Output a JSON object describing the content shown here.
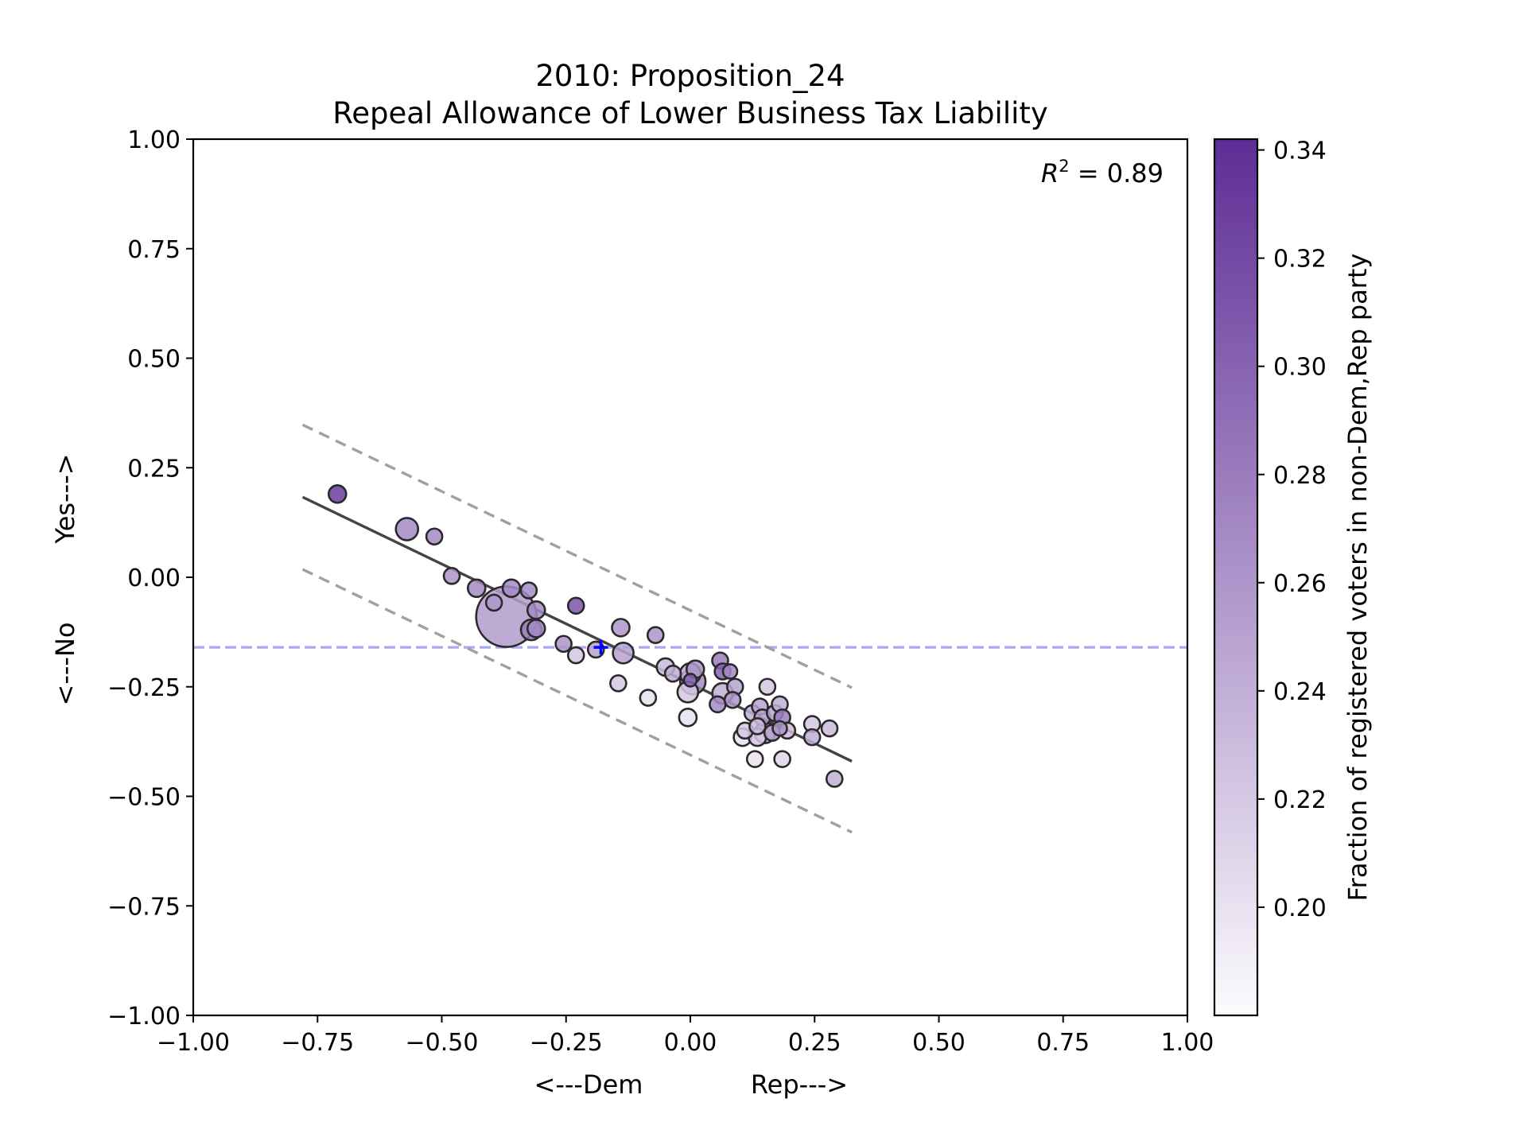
{
  "chart_data": {
    "type": "scatter",
    "title": "2010: Proposition_24",
    "subtitle": "Repeal Allowance of Lower Business Tax Liability",
    "xlabel_left": "<---Dem",
    "xlabel_right": "Rep--->",
    "ylabel_bottom": "<---No",
    "ylabel_top": "Yes--->",
    "xlim": [
      -1.0,
      1.0
    ],
    "ylim": [
      -1.0,
      1.0
    ],
    "xticks": [
      -1.0,
      -0.75,
      -0.5,
      -0.25,
      0.0,
      0.25,
      0.5,
      0.75,
      1.0
    ],
    "yticks": [
      -1.0,
      -0.75,
      -0.5,
      -0.25,
      0.0,
      0.25,
      0.5,
      0.75,
      1.0
    ],
    "xtick_labels": [
      "−1.00",
      "−0.75",
      "−0.50",
      "−0.25",
      "0.00",
      "0.25",
      "0.50",
      "0.75",
      "1.00"
    ],
    "ytick_labels": [
      "−1.00",
      "−0.75",
      "−0.50",
      "−0.25",
      "0.00",
      "0.25",
      "0.50",
      "0.75",
      "1.00"
    ],
    "annotation": {
      "label": "R",
      "superscript": "2",
      "value": " = 0.89"
    },
    "statewide_marker": {
      "x": -0.18,
      "y": -0.16,
      "color": "#0000ff"
    },
    "reference_hline": {
      "y": -0.16,
      "color": "#aaaaee"
    },
    "fit_line": {
      "x": [
        -0.78,
        0.325
      ],
      "y": [
        0.183,
        -0.42
      ],
      "color": "#444444"
    },
    "band_upper": {
      "x": [
        -0.78,
        0.325
      ],
      "y": [
        0.348,
        -0.252
      ],
      "color": "#a0a0a0"
    },
    "band_lower": {
      "x": [
        -0.78,
        0.325
      ],
      "y": [
        0.018,
        -0.582
      ],
      "color": "#a0a0a0"
    },
    "colorbar": {
      "label": "Fraction of registered voters in non-Dem,Rep party",
      "range": [
        0.18,
        0.342
      ],
      "ticks": [
        0.2,
        0.22,
        0.24,
        0.26,
        0.28,
        0.3,
        0.32,
        0.34
      ],
      "tick_labels": [
        "0.20",
        "0.22",
        "0.24",
        "0.26",
        "0.28",
        "0.30",
        "0.32",
        "0.34"
      ],
      "color_low": "#fcfbfd",
      "color_high": "#5e2d96"
    },
    "points": [
      {
        "x": -0.71,
        "y": 0.19,
        "size": 11,
        "c": 0.33
      },
      {
        "x": -0.57,
        "y": 0.11,
        "size": 14,
        "c": 0.27
      },
      {
        "x": -0.515,
        "y": 0.093,
        "size": 10,
        "c": 0.27
      },
      {
        "x": -0.48,
        "y": 0.003,
        "size": 10,
        "c": 0.26
      },
      {
        "x": -0.43,
        "y": -0.025,
        "size": 11,
        "c": 0.27
      },
      {
        "x": -0.395,
        "y": -0.058,
        "size": 10,
        "c": 0.26
      },
      {
        "x": -0.37,
        "y": -0.09,
        "size": 38,
        "c": 0.255
      },
      {
        "x": -0.36,
        "y": -0.025,
        "size": 11,
        "c": 0.27
      },
      {
        "x": -0.325,
        "y": -0.03,
        "size": 10,
        "c": 0.27
      },
      {
        "x": -0.31,
        "y": -0.075,
        "size": 11,
        "c": 0.27
      },
      {
        "x": -0.32,
        "y": -0.12,
        "size": 13,
        "c": 0.28
      },
      {
        "x": -0.31,
        "y": -0.117,
        "size": 11,
        "c": 0.27
      },
      {
        "x": -0.23,
        "y": -0.065,
        "size": 10,
        "c": 0.31
      },
      {
        "x": -0.255,
        "y": -0.152,
        "size": 10,
        "c": 0.26
      },
      {
        "x": -0.23,
        "y": -0.178,
        "size": 10,
        "c": 0.22
      },
      {
        "x": -0.19,
        "y": -0.165,
        "size": 10,
        "c": 0.25
      },
      {
        "x": -0.14,
        "y": -0.115,
        "size": 11,
        "c": 0.26
      },
      {
        "x": -0.135,
        "y": -0.173,
        "size": 13,
        "c": 0.25
      },
      {
        "x": -0.145,
        "y": -0.242,
        "size": 10,
        "c": 0.22
      },
      {
        "x": -0.07,
        "y": -0.132,
        "size": 10,
        "c": 0.26
      },
      {
        "x": -0.085,
        "y": -0.275,
        "size": 10,
        "c": 0.2
      },
      {
        "x": -0.05,
        "y": -0.205,
        "size": 11,
        "c": 0.23
      },
      {
        "x": -0.035,
        "y": -0.22,
        "size": 10,
        "c": 0.24
      },
      {
        "x": 0.0,
        "y": -0.22,
        "size": 13,
        "c": 0.24
      },
      {
        "x": 0.01,
        "y": -0.21,
        "size": 11,
        "c": 0.26
      },
      {
        "x": 0.005,
        "y": -0.238,
        "size": 16,
        "c": 0.27
      },
      {
        "x": -0.005,
        "y": -0.262,
        "size": 13,
        "c": 0.22
      },
      {
        "x": -0.005,
        "y": -0.32,
        "size": 11,
        "c": 0.2
      },
      {
        "x": 0.0,
        "y": -0.235,
        "size": 8,
        "c": 0.3
      },
      {
        "x": 0.06,
        "y": -0.19,
        "size": 10,
        "c": 0.28
      },
      {
        "x": 0.065,
        "y": -0.215,
        "size": 10,
        "c": 0.3
      },
      {
        "x": 0.08,
        "y": -0.215,
        "size": 9,
        "c": 0.27
      },
      {
        "x": 0.09,
        "y": -0.25,
        "size": 10,
        "c": 0.25
      },
      {
        "x": 0.065,
        "y": -0.265,
        "size": 13,
        "c": 0.24
      },
      {
        "x": 0.055,
        "y": -0.29,
        "size": 10,
        "c": 0.27
      },
      {
        "x": 0.085,
        "y": -0.28,
        "size": 10,
        "c": 0.26
      },
      {
        "x": 0.11,
        "y": -0.35,
        "size": 10,
        "c": 0.22
      },
      {
        "x": 0.105,
        "y": -0.365,
        "size": 11,
        "c": 0.2
      },
      {
        "x": 0.125,
        "y": -0.31,
        "size": 10,
        "c": 0.24
      },
      {
        "x": 0.14,
        "y": -0.295,
        "size": 10,
        "c": 0.25
      },
      {
        "x": 0.145,
        "y": -0.32,
        "size": 10,
        "c": 0.25
      },
      {
        "x": 0.135,
        "y": -0.34,
        "size": 10,
        "c": 0.23
      },
      {
        "x": 0.15,
        "y": -0.355,
        "size": 13,
        "c": 0.24
      },
      {
        "x": 0.135,
        "y": -0.365,
        "size": 11,
        "c": 0.22
      },
      {
        "x": 0.155,
        "y": -0.25,
        "size": 10,
        "c": 0.22
      },
      {
        "x": 0.17,
        "y": -0.31,
        "size": 10,
        "c": 0.25
      },
      {
        "x": 0.18,
        "y": -0.29,
        "size": 10,
        "c": 0.24
      },
      {
        "x": 0.185,
        "y": -0.32,
        "size": 10,
        "c": 0.28
      },
      {
        "x": 0.18,
        "y": -0.345,
        "size": 9,
        "c": 0.26
      },
      {
        "x": 0.165,
        "y": -0.355,
        "size": 10,
        "c": 0.25
      },
      {
        "x": 0.195,
        "y": -0.35,
        "size": 10,
        "c": 0.23
      },
      {
        "x": 0.13,
        "y": -0.415,
        "size": 10,
        "c": 0.2
      },
      {
        "x": 0.185,
        "y": -0.415,
        "size": 10,
        "c": 0.21
      },
      {
        "x": 0.245,
        "y": -0.335,
        "size": 10,
        "c": 0.22
      },
      {
        "x": 0.245,
        "y": -0.365,
        "size": 10,
        "c": 0.24
      },
      {
        "x": 0.28,
        "y": -0.345,
        "size": 10,
        "c": 0.23
      },
      {
        "x": 0.29,
        "y": -0.46,
        "size": 10,
        "c": 0.24
      }
    ]
  }
}
